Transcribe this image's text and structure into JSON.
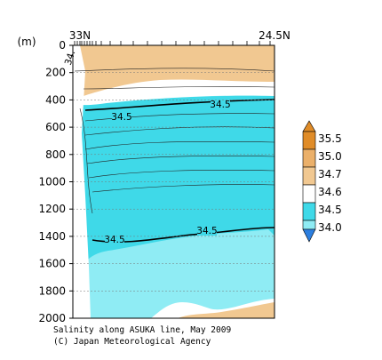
{
  "chart_data": {
    "type": "heatmap",
    "title": "Salinity along ASUKA line, May 2009",
    "credit": "(C) Japan Meteorological Agency",
    "x_range_labels": {
      "left": "33N",
      "right": "24.5N"
    },
    "y_unit": "(m)",
    "y_ticks": [
      0,
      200,
      400,
      600,
      800,
      1000,
      1200,
      1400,
      1600,
      1800,
      2000
    ],
    "ylim": [
      0,
      2000
    ],
    "y_inverted": true,
    "colorbar": {
      "levels": [
        {
          "value": "35.5",
          "color": "#e08c28"
        },
        {
          "value": "35.0",
          "color": "#ebb06a"
        },
        {
          "value": "34.7",
          "color": "#f1c891"
        },
        {
          "value": "34.6",
          "color": "#ffffff"
        },
        {
          "value": "34.5",
          "color": "#3fd9e8"
        },
        {
          "value": "34.0",
          "color": "#8fecf4"
        }
      ],
      "top_color": "#e08c28",
      "bottom_color": "#2c7fe0"
    },
    "contour_labels": [
      {
        "text": "34.5",
        "depth": 450,
        "position": "center"
      },
      {
        "text": "34.5",
        "depth": 420,
        "position": "right"
      },
      {
        "text": "34.5",
        "depth": 1450,
        "position": "center"
      },
      {
        "text": "34.5",
        "depth": 1380,
        "position": "right"
      },
      {
        "text": "34.",
        "depth": 40,
        "position": "left edge"
      }
    ],
    "grid": "dashed horizontal at each tick",
    "colors": {
      "high_salinity": "#f1c891",
      "mid_layer": "#ffffff",
      "thermocline": "#3fd9e8",
      "deep_water": "#8fecf4"
    }
  }
}
